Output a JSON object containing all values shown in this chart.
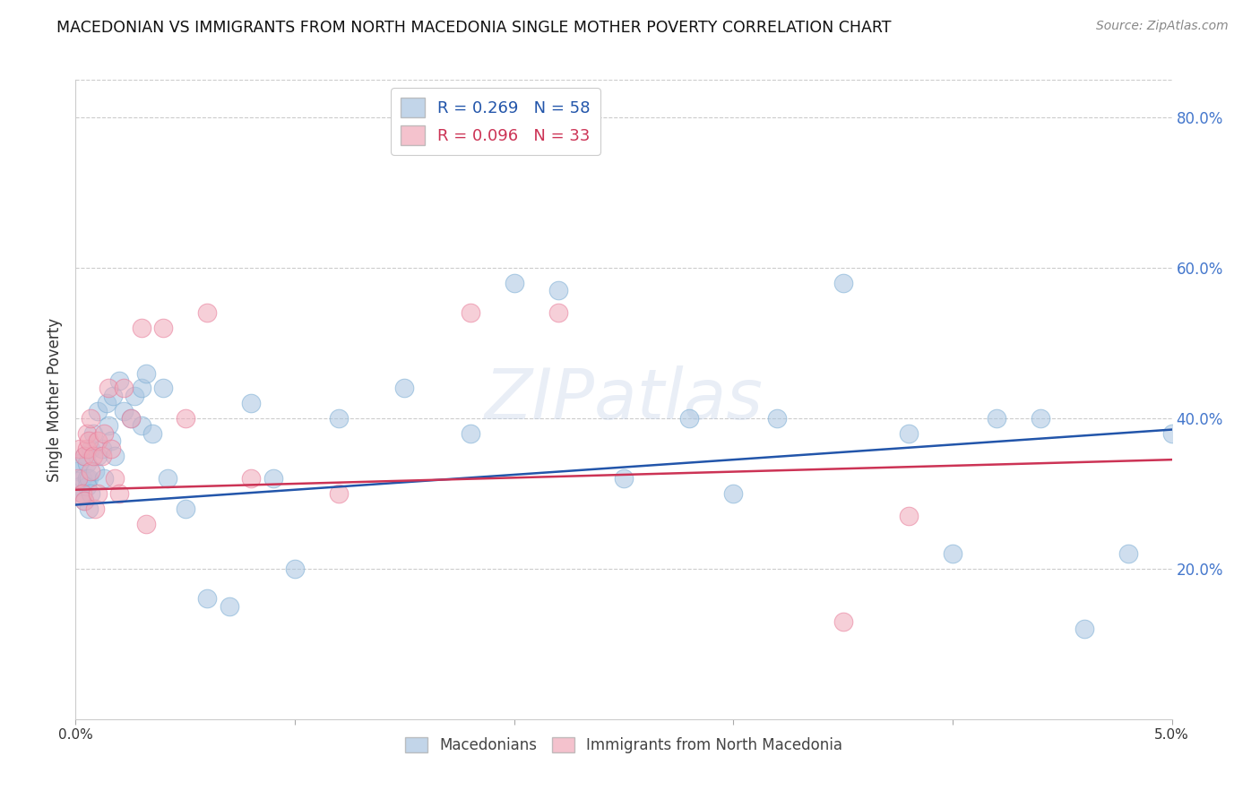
{
  "title": "MACEDONIAN VS IMMIGRANTS FROM NORTH MACEDONIA SINGLE MOTHER POVERTY CORRELATION CHART",
  "source": "Source: ZipAtlas.com",
  "ylabel": "Single Mother Poverty",
  "xlim": [
    0.0,
    0.05
  ],
  "ylim": [
    0.0,
    0.85
  ],
  "yticks": [
    0.2,
    0.4,
    0.6,
    0.8
  ],
  "ytick_labels": [
    "20.0%",
    "40.0%",
    "60.0%",
    "80.0%"
  ],
  "xticks": [
    0.0,
    0.01,
    0.02,
    0.03,
    0.04,
    0.05
  ],
  "xtick_labels": [
    "0.0%",
    "",
    "",
    "",
    "",
    "5.0%"
  ],
  "blue_R": "0.269",
  "blue_N": "58",
  "pink_R": "0.096",
  "pink_N": "33",
  "blue_color": "#a8c4e0",
  "pink_color": "#f0a8b8",
  "blue_edge_color": "#7badd4",
  "pink_edge_color": "#e87a98",
  "blue_line_color": "#2255aa",
  "pink_line_color": "#cc3355",
  "legend_label_blue": "Macedonians",
  "legend_label_pink": "Immigrants from North Macedonia",
  "watermark": "ZIPatlas",
  "blue_x": [
    0.0001,
    0.0002,
    0.0002,
    0.0003,
    0.0003,
    0.0004,
    0.0004,
    0.0005,
    0.0005,
    0.0005,
    0.0006,
    0.0006,
    0.0007,
    0.0007,
    0.0008,
    0.0009,
    0.001,
    0.001,
    0.0012,
    0.0013,
    0.0014,
    0.0015,
    0.0016,
    0.0017,
    0.0018,
    0.002,
    0.0022,
    0.0025,
    0.0027,
    0.003,
    0.003,
    0.0032,
    0.0035,
    0.004,
    0.0042,
    0.005,
    0.006,
    0.007,
    0.008,
    0.009,
    0.01,
    0.012,
    0.015,
    0.018,
    0.02,
    0.022,
    0.025,
    0.028,
    0.03,
    0.032,
    0.035,
    0.038,
    0.04,
    0.042,
    0.044,
    0.046,
    0.048,
    0.05
  ],
  "blue_y": [
    0.33,
    0.34,
    0.31,
    0.32,
    0.3,
    0.35,
    0.29,
    0.32,
    0.31,
    0.34,
    0.32,
    0.28,
    0.36,
    0.3,
    0.38,
    0.33,
    0.35,
    0.41,
    0.36,
    0.32,
    0.42,
    0.39,
    0.37,
    0.43,
    0.35,
    0.45,
    0.41,
    0.4,
    0.43,
    0.44,
    0.39,
    0.46,
    0.38,
    0.44,
    0.32,
    0.28,
    0.16,
    0.15,
    0.42,
    0.32,
    0.2,
    0.4,
    0.44,
    0.38,
    0.58,
    0.57,
    0.32,
    0.4,
    0.3,
    0.4,
    0.58,
    0.38,
    0.22,
    0.4,
    0.4,
    0.12,
    0.22,
    0.38
  ],
  "pink_x": [
    0.0001,
    0.0002,
    0.0003,
    0.0004,
    0.0004,
    0.0005,
    0.0005,
    0.0006,
    0.0007,
    0.0007,
    0.0008,
    0.0009,
    0.001,
    0.001,
    0.0012,
    0.0013,
    0.0015,
    0.0016,
    0.0018,
    0.002,
    0.0022,
    0.0025,
    0.003,
    0.0032,
    0.004,
    0.005,
    0.006,
    0.008,
    0.012,
    0.018,
    0.022,
    0.035,
    0.038
  ],
  "pink_y": [
    0.32,
    0.36,
    0.3,
    0.35,
    0.29,
    0.36,
    0.38,
    0.37,
    0.4,
    0.33,
    0.35,
    0.28,
    0.37,
    0.3,
    0.35,
    0.38,
    0.44,
    0.36,
    0.32,
    0.3,
    0.44,
    0.4,
    0.52,
    0.26,
    0.52,
    0.4,
    0.54,
    0.32,
    0.3,
    0.54,
    0.54,
    0.13,
    0.27
  ]
}
